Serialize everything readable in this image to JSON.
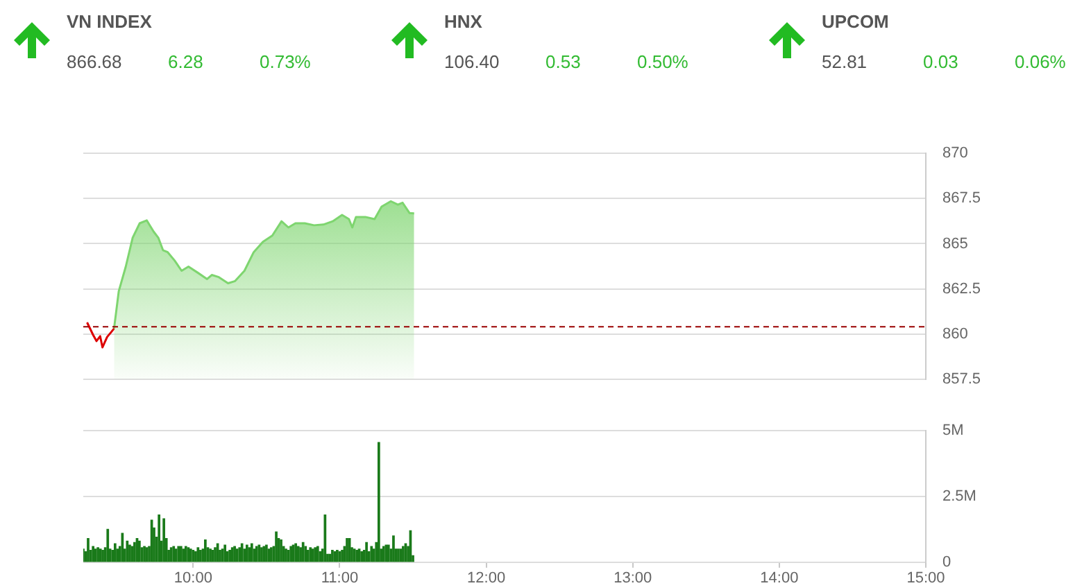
{
  "chart_data": [
    {
      "type": "other",
      "categories": [
        "VN INDEX",
        "HNX",
        "UPCOM"
      ],
      "annotations": [
        "866.68",
        "6.28",
        "0.73%",
        "106.40",
        "0.53",
        "0.50%",
        "52.81",
        "0.03",
        "0.06%"
      ]
    },
    {
      "type": "area",
      "xlim": [
        9.25,
        15
      ],
      "ylim": [
        857.5,
        870
      ],
      "yticks": [
        857.5,
        860,
        862.5,
        865,
        867.5,
        870
      ],
      "grid": "y",
      "tick_labels": "y",
      "legend": false,
      "ref_lines": [
        {
          "axis": "y",
          "value": 860.4,
          "color": "#990000",
          "line_style": "dashed"
        }
      ],
      "series": [
        {
          "type": "line",
          "color": "#dd0000",
          "x": [
            9.276,
            9.317,
            9.34,
            9.365,
            9.381,
            9.413,
            9.436,
            9.46
          ],
          "values": [
            860.64,
            859.95,
            859.61,
            859.88,
            859.26,
            859.84,
            860.06,
            860.3
          ]
        },
        {
          "color": "#7ed56f",
          "x": [
            9.46,
            9.492,
            9.54,
            9.587,
            9.635,
            9.683,
            9.73,
            9.762,
            9.794,
            9.826,
            9.873,
            9.921,
            9.968,
            10.032,
            10.095,
            10.127,
            10.175,
            10.238,
            10.286,
            10.35,
            10.413,
            10.476,
            10.54,
            10.603,
            10.65,
            10.698,
            10.762,
            10.825,
            10.889,
            10.952,
            11.016,
            11.063,
            11.086,
            11.111,
            11.175,
            11.238,
            11.286,
            11.349,
            11.397,
            11.429,
            11.476,
            11.508
          ],
          "values": [
            860.3,
            862.36,
            863.73,
            865.33,
            866.13,
            866.29,
            865.67,
            865.33,
            864.64,
            864.53,
            864.07,
            863.5,
            863.73,
            863.39,
            863.04,
            863.27,
            863.15,
            862.81,
            862.93,
            863.5,
            864.53,
            865.1,
            865.45,
            866.24,
            865.9,
            866.13,
            866.13,
            866.02,
            866.06,
            866.24,
            866.59,
            866.36,
            865.9,
            866.48,
            866.48,
            866.36,
            867.05,
            867.35,
            867.16,
            867.27,
            866.7,
            866.68
          ]
        }
      ]
    },
    {
      "type": "bar",
      "xlim": [
        9.25,
        15
      ],
      "xticks": [
        {
          "value": 10,
          "label": "10:00"
        },
        {
          "value": 11,
          "label": "11:00"
        },
        {
          "value": 12,
          "label": "12:00"
        },
        {
          "value": 13,
          "label": "13:00"
        },
        {
          "value": 14,
          "label": "14:00"
        },
        {
          "value": 15,
          "label": "15:00"
        }
      ],
      "ylim": [
        0,
        5000000
      ],
      "yticks": [
        0,
        {
          "value": 2500000,
          "label": "2.5M"
        },
        {
          "value": 5000000,
          "label": "5M"
        }
      ],
      "grid": "y",
      "legend": false,
      "x": [
        9.25,
        9.267,
        9.283,
        9.3,
        9.317,
        9.333,
        9.35,
        9.367,
        9.383,
        9.4,
        9.417,
        9.433,
        9.45,
        9.467,
        9.483,
        9.5,
        9.517,
        9.533,
        9.55,
        9.567,
        9.583,
        9.6,
        9.617,
        9.633,
        9.65,
        9.667,
        9.683,
        9.7,
        9.717,
        9.733,
        9.75,
        9.767,
        9.783,
        9.8,
        9.817,
        9.833,
        9.85,
        9.867,
        9.883,
        9.9,
        9.917,
        9.933,
        9.95,
        9.967,
        9.983,
        10,
        10.017,
        10.033,
        10.05,
        10.067,
        10.083,
        10.1,
        10.117,
        10.133,
        10.15,
        10.167,
        10.183,
        10.2,
        10.217,
        10.233,
        10.25,
        10.267,
        10.283,
        10.3,
        10.317,
        10.333,
        10.35,
        10.367,
        10.383,
        10.4,
        10.417,
        10.433,
        10.45,
        10.467,
        10.483,
        10.5,
        10.517,
        10.533,
        10.55,
        10.567,
        10.583,
        10.6,
        10.617,
        10.633,
        10.65,
        10.667,
        10.683,
        10.7,
        10.717,
        10.733,
        10.75,
        10.767,
        10.783,
        10.8,
        10.817,
        10.833,
        10.85,
        10.867,
        10.883,
        10.9,
        10.917,
        10.933,
        10.95,
        10.967,
        10.983,
        11,
        11.017,
        11.033,
        11.05,
        11.067,
        11.083,
        11.1,
        11.117,
        11.133,
        11.15,
        11.167,
        11.183,
        11.2,
        11.217,
        11.233,
        11.25,
        11.267,
        11.283,
        11.3,
        11.317,
        11.333,
        11.35,
        11.367,
        11.383,
        11.4,
        11.417,
        11.433,
        11.45,
        11.467,
        11.483,
        11.5
      ],
      "series": [
        {
          "color": "#1a7a1a",
          "values": [
            500000,
            400000,
            900000,
            450000,
            600000,
            500000,
            550000,
            500000,
            450000,
            550000,
            1250000,
            500000,
            450000,
            700000,
            500000,
            600000,
            1100000,
            500000,
            800000,
            650000,
            600000,
            750000,
            900000,
            800000,
            550000,
            600000,
            550000,
            600000,
            1600000,
            1300000,
            950000,
            1800000,
            800000,
            1650000,
            900000,
            450000,
            550000,
            600000,
            500000,
            600000,
            600000,
            500000,
            600000,
            550000,
            500000,
            450000,
            400000,
            550000,
            450000,
            500000,
            850000,
            550000,
            500000,
            450000,
            550000,
            700000,
            450000,
            500000,
            650000,
            400000,
            450000,
            550000,
            600000,
            500000,
            550000,
            700000,
            500000,
            650000,
            550000,
            700000,
            500000,
            600000,
            650000,
            550000,
            600000,
            650000,
            500000,
            550000,
            600000,
            1150000,
            900000,
            850000,
            600000,
            500000,
            450000,
            600000,
            650000,
            700000,
            600000,
            550000,
            750000,
            600000,
            450000,
            550000,
            500000,
            550000,
            600000,
            400000,
            500000,
            1800000,
            300000,
            300000,
            450000,
            400000,
            450000,
            400000,
            450000,
            600000,
            900000,
            900000,
            550000,
            500000,
            450000,
            500000,
            400000,
            450000,
            750000,
            400000,
            600000,
            500000,
            750000,
            4550000,
            500000,
            600000,
            650000,
            650000,
            500000,
            1000000,
            500000,
            500000,
            500000,
            600000,
            700000,
            600000,
            1200000,
            250000
          ]
        }
      ]
    }
  ]
}
